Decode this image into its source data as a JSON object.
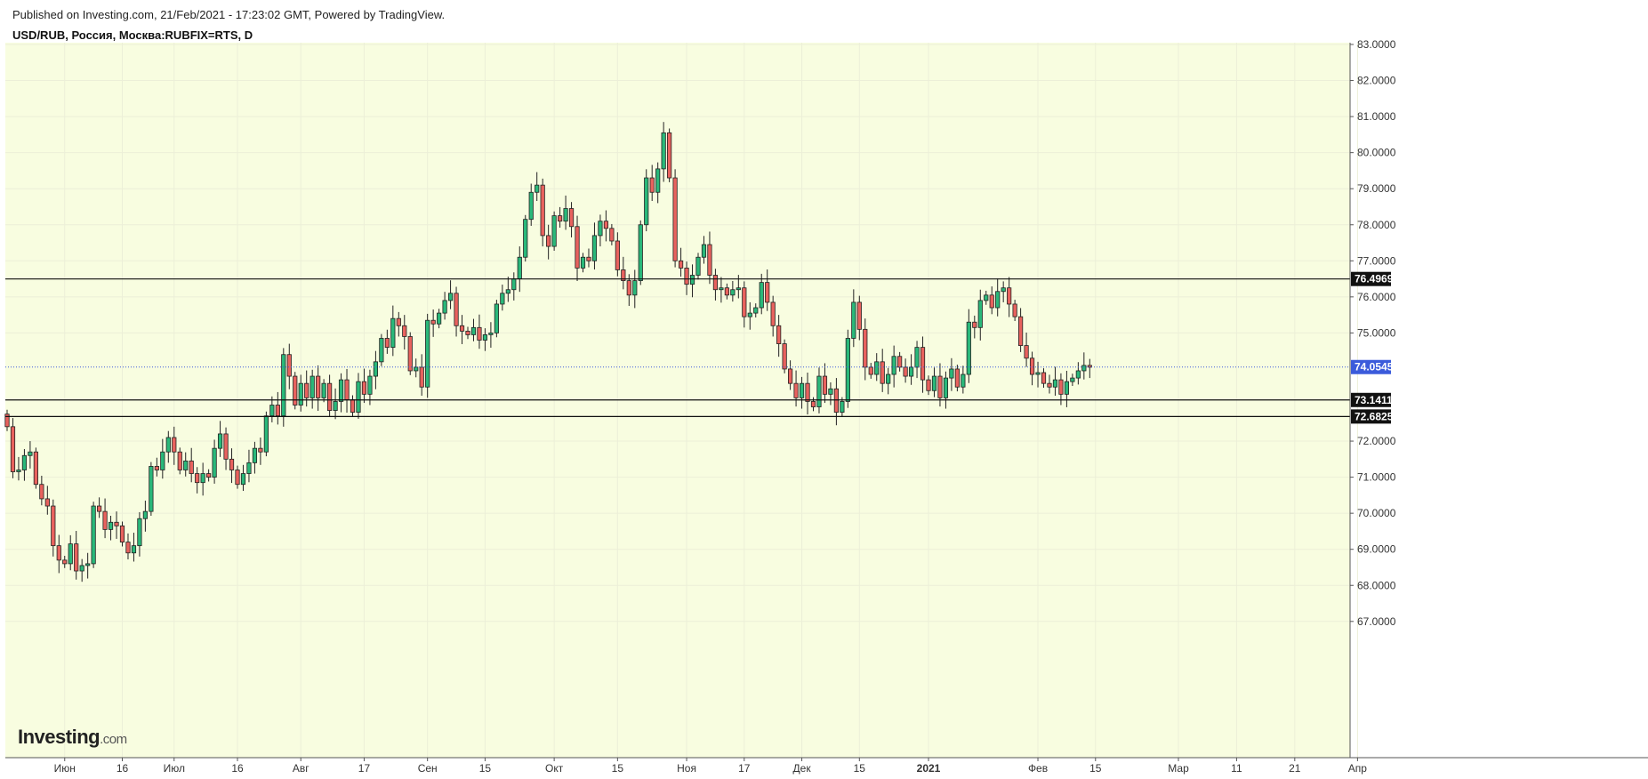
{
  "header": {
    "published": "Published on Investing.com, 21/Feb/2021 - 17:23:02 GMT, Powered by TradingView.",
    "symbol": "USD/RUB, Россия, Москва:RUBFIX=RTS, D"
  },
  "logo": {
    "main": "Investing",
    "suffix": ".com"
  },
  "colors": {
    "plot_bg": "#f8fde0",
    "up": "#2ab87a",
    "down": "#e8625e",
    "wick": "#222222",
    "current_line": "#3b5bdb",
    "current_tag": "#3b5bdb",
    "level_tag": "#111111"
  },
  "chart_data": {
    "type": "candlestick",
    "title": "USD/RUB, Россия, Москва:RUBFIX=RTS, D",
    "ylim": [
      66.6,
      83.2
    ],
    "y_ticks": [
      {
        "value": 67,
        "label": "67.0000"
      },
      {
        "value": 68,
        "label": "68.0000"
      },
      {
        "value": 69,
        "label": "69.0000"
      },
      {
        "value": 70,
        "label": "70.0000"
      },
      {
        "value": 71,
        "label": "71.0000"
      },
      {
        "value": 72,
        "label": "72.0000"
      },
      {
        "value": 75,
        "label": "75.0000"
      },
      {
        "value": 76,
        "label": "76.0000"
      },
      {
        "value": 77,
        "label": "77.0000"
      },
      {
        "value": 78,
        "label": "78.0000"
      },
      {
        "value": 79,
        "label": "79.0000"
      },
      {
        "value": 80,
        "label": "80.0000"
      },
      {
        "value": 81,
        "label": "81.0000"
      },
      {
        "value": 82,
        "label": "82.0000"
      },
      {
        "value": 83,
        "label": "83.0000"
      }
    ],
    "x_ticks": [
      {
        "label": "Июн",
        "index": 10,
        "bold": false
      },
      {
        "label": "16",
        "index": 20,
        "bold": false
      },
      {
        "label": "Июл",
        "index": 29,
        "bold": false
      },
      {
        "label": "16",
        "index": 40,
        "bold": false
      },
      {
        "label": "Авг",
        "index": 51,
        "bold": false
      },
      {
        "label": "17",
        "index": 62,
        "bold": false
      },
      {
        "label": "Сен",
        "index": 73,
        "bold": false
      },
      {
        "label": "15",
        "index": 83,
        "bold": false
      },
      {
        "label": "Окт",
        "index": 95,
        "bold": false
      },
      {
        "label": "15",
        "index": 106,
        "bold": false
      },
      {
        "label": "Ноя",
        "index": 118,
        "bold": false
      },
      {
        "label": "17",
        "index": 128,
        "bold": false
      },
      {
        "label": "Дек",
        "index": 138,
        "bold": false
      },
      {
        "label": "15",
        "index": 148,
        "bold": false
      },
      {
        "label": "2021",
        "index": 160,
        "bold": true
      },
      {
        "label": "Фев",
        "index": 179,
        "bold": false
      },
      {
        "label": "15",
        "index": 189,
        "bold": false
      },
      {
        "label": "Мар",
        "index": 203.4,
        "bold": false
      },
      {
        "label": "11",
        "index": 213.5,
        "bold": false
      },
      {
        "label": "21",
        "index": 223.6,
        "bold": false
      },
      {
        "label": "Апр",
        "index": 234.5,
        "bold": false
      }
    ],
    "levels": [
      {
        "value": 76.4969,
        "label": "76.4969"
      },
      {
        "value": 73.1411,
        "label": "73.1411"
      },
      {
        "value": 72.6825,
        "label": "72.6825"
      }
    ],
    "current": {
      "value": 74.0545,
      "label": "74.0545"
    },
    "candles": [
      [
        72.75,
        72.4
      ],
      [
        72.4,
        71.15
      ],
      [
        71.15,
        71.2
      ],
      [
        71.2,
        71.6
      ],
      [
        71.6,
        71.7
      ],
      [
        71.7,
        70.8
      ],
      [
        70.8,
        70.4
      ],
      [
        70.4,
        70.2
      ],
      [
        70.2,
        69.1
      ],
      [
        69.1,
        68.7
      ],
      [
        68.7,
        68.6
      ],
      [
        68.6,
        69.15
      ],
      [
        69.15,
        68.4
      ],
      [
        68.4,
        68.55
      ],
      [
        68.55,
        68.6
      ],
      [
        68.6,
        70.2
      ],
      [
        70.2,
        70.05
      ],
      [
        70.05,
        69.55
      ],
      [
        69.55,
        69.75
      ],
      [
        69.75,
        69.65
      ],
      [
        69.65,
        69.2
      ],
      [
        69.2,
        68.9
      ],
      [
        68.9,
        69.1
      ],
      [
        69.1,
        69.85
      ],
      [
        69.85,
        70.05
      ],
      [
        70.05,
        71.3
      ],
      [
        71.3,
        71.2
      ],
      [
        71.2,
        71.7
      ],
      [
        71.7,
        72.1
      ],
      [
        72.1,
        71.7
      ],
      [
        71.7,
        71.2
      ],
      [
        71.2,
        71.45
      ],
      [
        71.45,
        71.1
      ],
      [
        71.1,
        70.85
      ],
      [
        70.85,
        71.1
      ],
      [
        71.1,
        71.0
      ],
      [
        71.0,
        71.8
      ],
      [
        71.8,
        72.2
      ],
      [
        72.2,
        71.5
      ],
      [
        71.5,
        71.2
      ],
      [
        71.2,
        70.8
      ],
      [
        70.8,
        71.1
      ],
      [
        71.1,
        71.4
      ],
      [
        71.4,
        71.8
      ],
      [
        71.8,
        71.7
      ],
      [
        71.7,
        72.7
      ],
      [
        72.7,
        73.0
      ],
      [
        73.0,
        72.7
      ],
      [
        72.7,
        74.4
      ],
      [
        74.4,
        73.8
      ],
      [
        73.8,
        73.0
      ],
      [
        73.0,
        73.6
      ],
      [
        73.6,
        73.2
      ],
      [
        73.2,
        73.8
      ],
      [
        73.8,
        73.2
      ],
      [
        73.2,
        73.6
      ],
      [
        73.6,
        72.85
      ],
      [
        72.85,
        73.1
      ],
      [
        73.1,
        73.7
      ],
      [
        73.7,
        73.15
      ],
      [
        73.15,
        72.8
      ],
      [
        72.8,
        73.65
      ],
      [
        73.65,
        73.3
      ],
      [
        73.3,
        73.8
      ],
      [
        73.8,
        74.2
      ],
      [
        74.2,
        74.85
      ],
      [
        74.85,
        74.6
      ],
      [
        74.6,
        75.4
      ],
      [
        75.4,
        75.2
      ],
      [
        75.2,
        74.9
      ],
      [
        74.9,
        73.95
      ],
      [
        73.95,
        74.05
      ],
      [
        74.05,
        73.5
      ],
      [
        73.5,
        75.35
      ],
      [
        75.35,
        75.25
      ],
      [
        75.25,
        75.55
      ],
      [
        75.55,
        75.9
      ],
      [
        75.9,
        76.1
      ],
      [
        76.1,
        75.2
      ],
      [
        75.2,
        75.05
      ],
      [
        75.05,
        74.95
      ],
      [
        74.95,
        75.15
      ],
      [
        75.15,
        74.8
      ],
      [
        74.8,
        74.95
      ],
      [
        74.95,
        75.0
      ],
      [
        75.0,
        75.8
      ],
      [
        75.8,
        76.1
      ],
      [
        76.1,
        76.2
      ],
      [
        76.2,
        76.5
      ],
      [
        76.5,
        77.1
      ],
      [
        77.1,
        78.15
      ],
      [
        78.15,
        78.9
      ],
      [
        78.9,
        79.1
      ],
      [
        79.1,
        77.7
      ],
      [
        77.7,
        77.4
      ],
      [
        77.4,
        78.25
      ],
      [
        78.25,
        78.1
      ],
      [
        78.1,
        78.45
      ],
      [
        78.45,
        77.95
      ],
      [
        77.95,
        76.8
      ],
      [
        76.8,
        77.1
      ],
      [
        77.1,
        77.0
      ],
      [
        77.0,
        77.7
      ],
      [
        77.7,
        78.1
      ],
      [
        78.1,
        77.9
      ],
      [
        77.9,
        77.55
      ],
      [
        77.55,
        76.75
      ],
      [
        76.75,
        76.45
      ],
      [
        76.45,
        76.05
      ],
      [
        76.05,
        76.45
      ],
      [
        76.45,
        78.0
      ],
      [
        78.0,
        79.3
      ],
      [
        79.3,
        78.9
      ],
      [
        78.9,
        79.55
      ],
      [
        79.55,
        80.55
      ],
      [
        80.55,
        79.3
      ],
      [
        79.3,
        77.0
      ],
      [
        77.0,
        76.8
      ],
      [
        76.8,
        76.35
      ],
      [
        76.35,
        76.6
      ],
      [
        76.6,
        77.1
      ],
      [
        77.1,
        77.45
      ],
      [
        77.45,
        76.6
      ],
      [
        76.6,
        76.2
      ],
      [
        76.2,
        76.25
      ],
      [
        76.25,
        76.05
      ],
      [
        76.05,
        76.2
      ],
      [
        76.2,
        76.25
      ],
      [
        76.25,
        75.45
      ],
      [
        75.45,
        75.55
      ],
      [
        75.55,
        75.7
      ],
      [
        75.7,
        76.4
      ],
      [
        76.4,
        75.85
      ],
      [
        75.85,
        75.2
      ],
      [
        75.2,
        74.7
      ],
      [
        74.7,
        74.0
      ],
      [
        74.0,
        73.6
      ],
      [
        73.6,
        73.2
      ],
      [
        73.2,
        73.6
      ],
      [
        73.6,
        73.1
      ],
      [
        73.1,
        72.95
      ],
      [
        72.95,
        73.8
      ],
      [
        73.8,
        73.3
      ],
      [
        73.3,
        73.45
      ],
      [
        73.45,
        72.8
      ],
      [
        72.8,
        73.1
      ],
      [
        73.1,
        74.85
      ],
      [
        74.85,
        75.85
      ],
      [
        75.85,
        75.1
      ],
      [
        75.1,
        74.05
      ],
      [
        74.05,
        73.85
      ],
      [
        73.85,
        74.2
      ],
      [
        74.2,
        73.6
      ],
      [
        73.6,
        73.85
      ],
      [
        73.85,
        74.35
      ],
      [
        74.35,
        74.05
      ],
      [
        74.05,
        73.8
      ],
      [
        73.8,
        74.05
      ],
      [
        74.05,
        74.6
      ],
      [
        74.6,
        73.7
      ],
      [
        73.7,
        73.4
      ],
      [
        73.4,
        73.8
      ],
      [
        73.8,
        73.2
      ],
      [
        73.2,
        73.75
      ],
      [
        73.75,
        74.0
      ],
      [
        74.0,
        73.5
      ],
      [
        73.5,
        73.85
      ],
      [
        73.85,
        75.3
      ],
      [
        75.3,
        75.15
      ],
      [
        75.15,
        75.9
      ],
      [
        75.9,
        76.05
      ],
      [
        76.05,
        75.7
      ],
      [
        75.7,
        76.15
      ],
      [
        76.15,
        76.25
      ],
      [
        76.25,
        75.8
      ],
      [
        75.8,
        75.45
      ],
      [
        75.45,
        74.65
      ],
      [
        74.65,
        74.3
      ],
      [
        74.3,
        73.85
      ],
      [
        73.85,
        73.9
      ],
      [
        73.9,
        73.6
      ],
      [
        73.6,
        73.5
      ],
      [
        73.5,
        73.7
      ],
      [
        73.7,
        73.3
      ],
      [
        73.3,
        73.65
      ],
      [
        73.65,
        73.75
      ],
      [
        73.75,
        73.95
      ],
      [
        73.95,
        74.1
      ],
      [
        74.1,
        74.05
      ]
    ]
  }
}
